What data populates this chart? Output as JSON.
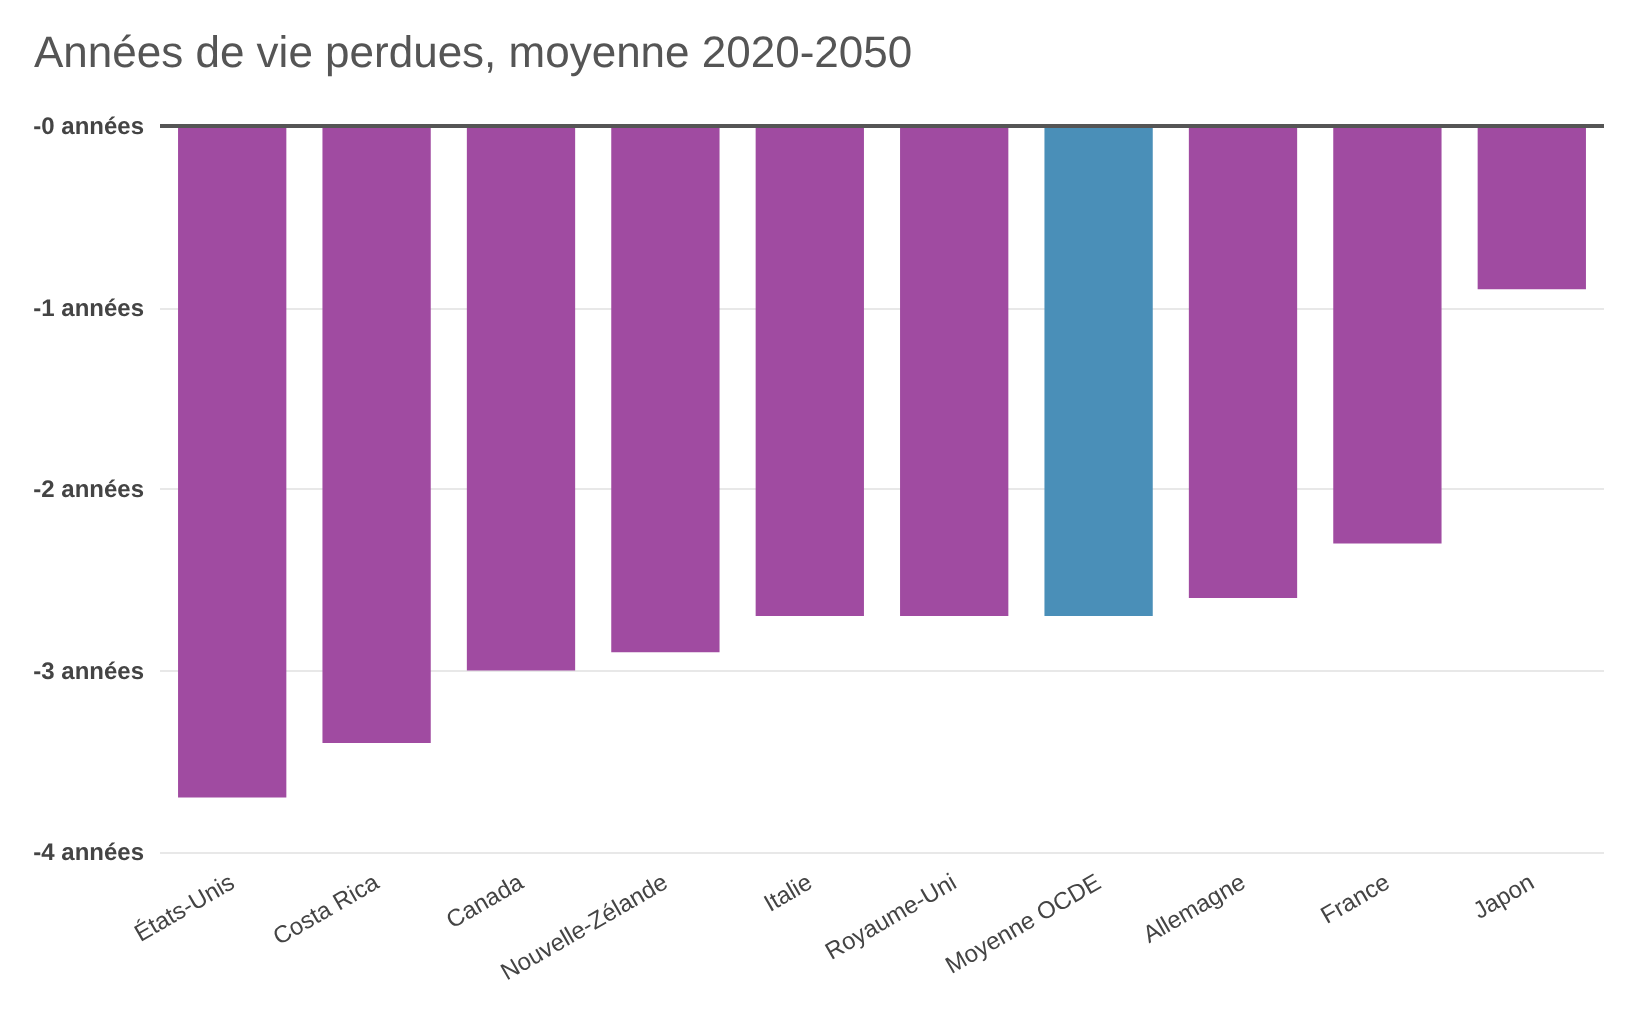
{
  "chart_data": {
    "type": "bar",
    "title": "Années de vie perdues, moyenne 2020-2050",
    "categories": [
      "États-Unis",
      "Costa Rica",
      "Canada",
      "Nouvelle-Zélande",
      "Italie",
      "Royaume-Uni",
      "Moyenne OCDE",
      "Allemagne",
      "France",
      "Japon"
    ],
    "values": [
      -3.7,
      -3.4,
      -3.0,
      -2.9,
      -2.7,
      -2.7,
      -2.7,
      -2.6,
      -2.3,
      -0.9
    ],
    "colors": [
      "#a04ba1",
      "#a04ba1",
      "#a04ba1",
      "#a04ba1",
      "#a04ba1",
      "#a04ba1",
      "#4a8fb8",
      "#a04ba1",
      "#a04ba1",
      "#a04ba1"
    ],
    "ylim": [
      -4,
      0
    ],
    "yticks": [
      {
        "value": 0,
        "label": "-0 années"
      },
      {
        "value": -1,
        "label": "-1 années"
      },
      {
        "value": -2,
        "label": "-2 années"
      },
      {
        "value": -3,
        "label": "-3 années"
      },
      {
        "value": -4,
        "label": "-4 années"
      }
    ],
    "grid": "y"
  }
}
